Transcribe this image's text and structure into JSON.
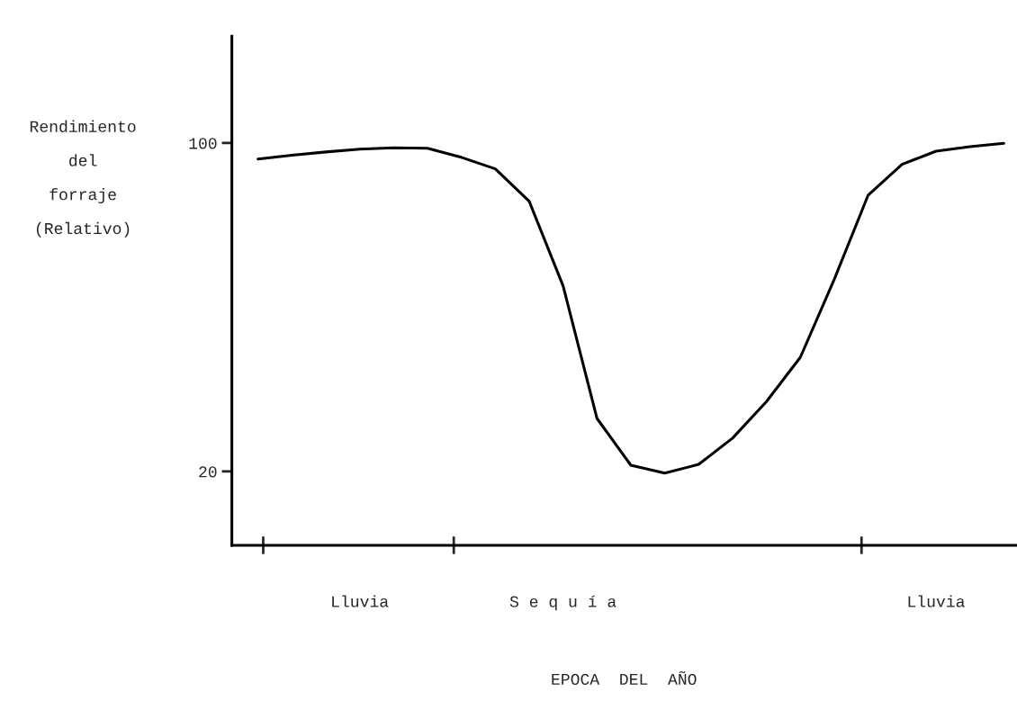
{
  "chart_data": {
    "type": "line",
    "xlabel": "EPOCA  DEL  AÑO",
    "ylabel": "Rendimiento\ndel\nforraje\n(Relativo)",
    "ylim": [
      2,
      126
    ],
    "yticks": [
      20,
      100
    ],
    "categories": [
      null,
      null,
      null,
      "Lluvia",
      null,
      null,
      null,
      null,
      null,
      "S e q u í a",
      null,
      null,
      null,
      null,
      null,
      null,
      null,
      null,
      null,
      null,
      "Lluvia",
      null,
      null
    ],
    "grid": false,
    "legend": false,
    "marker": "none",
    "line_style": "solid",
    "series": [
      {
        "color": "#000000",
        "values": [
          96.1,
          97.0,
          97.8,
          98.5,
          98.8,
          98.7,
          96.5,
          93.7,
          85.8,
          65.2,
          32.9,
          21.5,
          19.6,
          21.7,
          28.1,
          37.0,
          47.8,
          66.8,
          87.3,
          94.8,
          98.0,
          99.1,
          99.9
        ]
      }
    ]
  }
}
